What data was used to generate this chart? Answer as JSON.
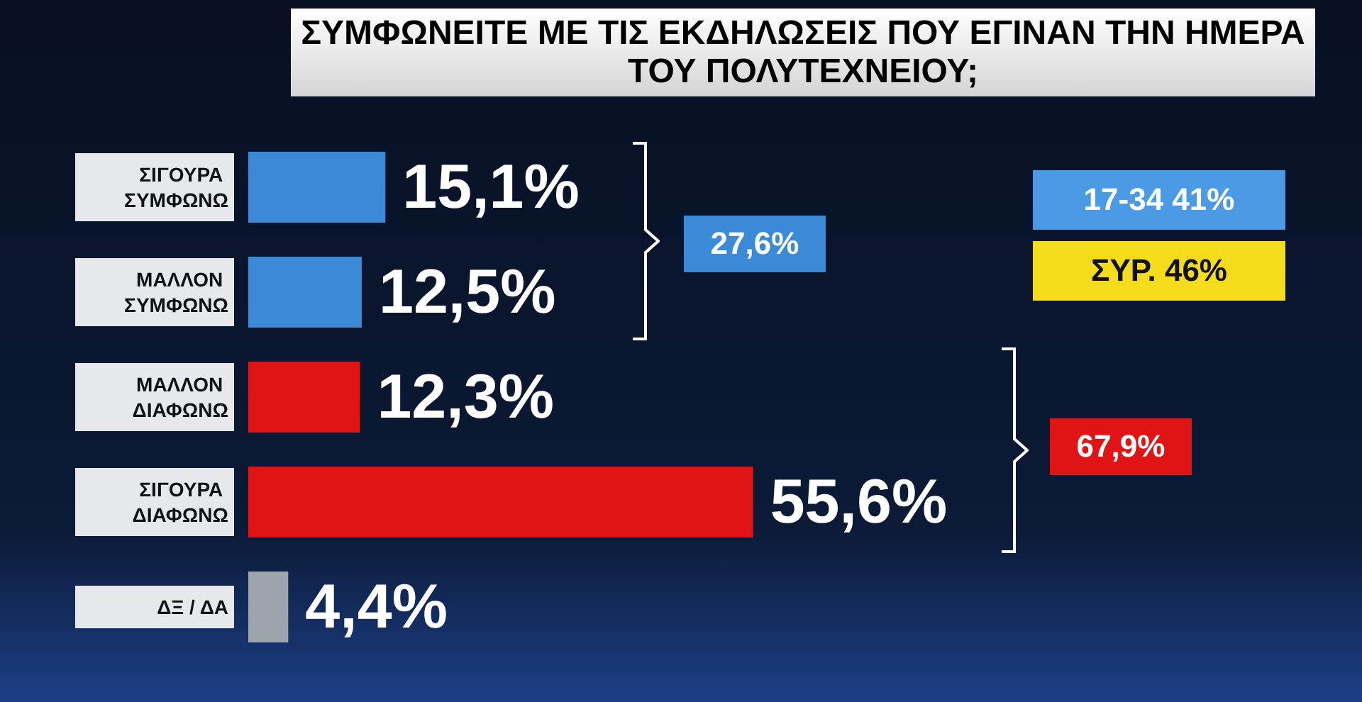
{
  "chart_data": {
    "type": "bar",
    "orientation": "horizontal",
    "title": "ΣΥΜΦΩΝΕΙΤΕ ΜΕ ΤΙΣ ΕΚΔΗΛΩΣΕΙΣ ΠΟΥ ΕΓΙΝΑΝ ΤΗΝ ΗΜΕΡΑ ΤΟΥ ΠΟΛΥΤΕΧΝΕΙΟΥ;",
    "categories": [
      "ΣΙΓΟΥΡΑ ΣΥΜΦΩΝΩ",
      "ΜΑΛΛΟΝ ΣΥΜΦΩΝΩ",
      "ΜΑΛΛΟΝ ΔΙΑΦΩΝΩ",
      "ΣΙΓΟΥΡΑ ΔΙΑΦΩΝΩ",
      "ΔΞ / ΔΑ"
    ],
    "values": [
      15.1,
      12.5,
      12.3,
      55.6,
      4.4
    ],
    "value_labels": [
      "15,1%",
      "12,5%",
      "12,3%",
      "55,6%",
      "4,4%"
    ],
    "colors": [
      "#3b8ad8",
      "#3b8ad8",
      "#e01414",
      "#e01414",
      "#9ea4ac"
    ],
    "annotations": [
      "27,6%",
      "67,9%",
      "17-34 41%",
      "ΣΥΡ. 46%"
    ]
  }
}
